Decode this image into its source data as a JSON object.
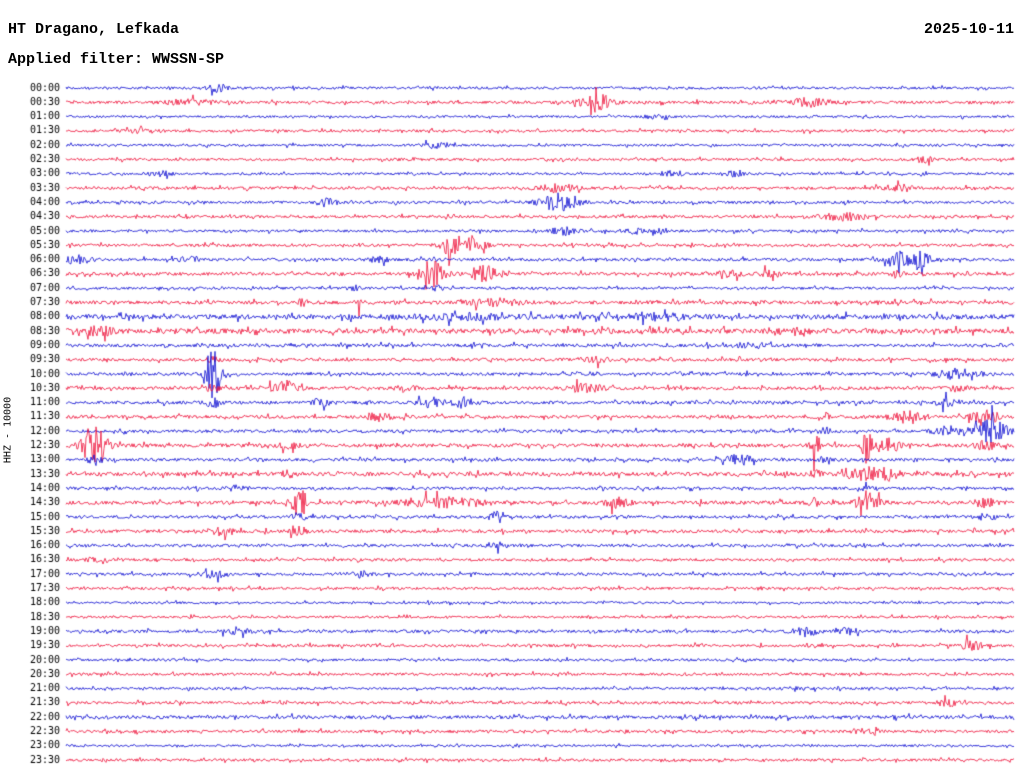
{
  "header": {
    "station": "HT Dragano, Lefkada",
    "date": "2025-10-11",
    "filter_label": "Applied filter: WWSSN-SP"
  },
  "axis": {
    "channel_label": "HHZ - 10000"
  },
  "colors": {
    "blue": "#0b0bd0",
    "red": "#ee1038",
    "text": "#000000",
    "background": "#ffffff"
  },
  "chart_data": {
    "type": "line",
    "title": "HT Dragano, Lefkada",
    "subtitle": "Applied filter: WWSSN-SP",
    "date": "2025-10-11",
    "ylabel": "HHZ - 10000",
    "x_range_per_row_minutes": 30,
    "rows": [
      {
        "label": "00:00",
        "color": "blue",
        "noise": 1.2,
        "events": [
          [
            0.16,
            3.5,
            8
          ]
        ]
      },
      {
        "label": "00:30",
        "color": "red",
        "noise": 1.4,
        "events": [
          [
            0.13,
            2.5,
            18
          ],
          [
            0.56,
            8,
            11
          ],
          [
            0.785,
            5,
            13
          ]
        ]
      },
      {
        "label": "01:00",
        "color": "blue",
        "noise": 1.1,
        "events": [
          [
            0.62,
            1.5,
            10
          ]
        ]
      },
      {
        "label": "01:30",
        "color": "red",
        "noise": 1.3,
        "events": [
          [
            0.08,
            1.8,
            12
          ]
        ]
      },
      {
        "label": "02:00",
        "color": "blue",
        "noise": 1.2,
        "events": [
          [
            0.39,
            2.5,
            9
          ]
        ]
      },
      {
        "label": "02:30",
        "color": "red",
        "noise": 1.3,
        "events": [
          [
            0.905,
            3.5,
            5
          ]
        ]
      },
      {
        "label": "03:00",
        "color": "blue",
        "noise": 1.2,
        "events": [
          [
            0.1,
            2.5,
            8
          ],
          [
            0.64,
            2.5,
            10
          ],
          [
            0.705,
            2.5,
            6
          ]
        ]
      },
      {
        "label": "03:30",
        "color": "red",
        "noise": 1.4,
        "events": [
          [
            0.52,
            3.5,
            14
          ],
          [
            0.875,
            2.5,
            10
          ]
        ]
      },
      {
        "label": "04:00",
        "color": "blue",
        "noise": 1.3,
        "events": [
          [
            0.275,
            4,
            7
          ],
          [
            0.52,
            9,
            13
          ]
        ]
      },
      {
        "label": "04:30",
        "color": "red",
        "noise": 1.4,
        "events": [
          [
            0.82,
            3.5,
            15
          ]
        ]
      },
      {
        "label": "05:00",
        "color": "blue",
        "noise": 1.3,
        "events": [
          [
            0.525,
            3.5,
            9
          ],
          [
            0.6,
            2.5,
            7
          ],
          [
            0.625,
            2.5,
            5
          ]
        ]
      },
      {
        "label": "05:30",
        "color": "red",
        "noise": 1.4,
        "events": [
          [
            0.405,
            13,
            5
          ],
          [
            0.43,
            5,
            9
          ]
        ]
      },
      {
        "label": "06:00",
        "color": "blue",
        "noise": 1.5,
        "events": [
          [
            0.012,
            4,
            9
          ],
          [
            0.13,
            3,
            7
          ],
          [
            0.33,
            3,
            7
          ],
          [
            0.89,
            11,
            13
          ]
        ]
      },
      {
        "label": "06:30",
        "color": "red",
        "noise": 1.6,
        "events": [
          [
            0.388,
            12,
            9
          ],
          [
            0.443,
            10,
            9
          ],
          [
            0.7,
            4,
            7
          ],
          [
            0.745,
            4,
            7
          ],
          [
            0.875,
            3,
            5
          ]
        ]
      },
      {
        "label": "07:00",
        "color": "blue",
        "noise": 1.3,
        "events": [
          [
            0.305,
            2.5,
            5
          ],
          [
            0.39,
            2.5,
            7
          ]
        ]
      },
      {
        "label": "07:30",
        "color": "red",
        "noise": 1.8,
        "events": [
          [
            0.25,
            5,
            3
          ],
          [
            0.31,
            5,
            3
          ],
          [
            0.45,
            3.5,
            18
          ]
        ]
      },
      {
        "label": "08:00",
        "color": "blue",
        "noise": 2.4,
        "events": [
          [
            0.42,
            2.5,
            28
          ],
          [
            0.63,
            2.5,
            20
          ]
        ]
      },
      {
        "label": "08:30",
        "color": "red",
        "noise": 2.4,
        "events": [
          [
            0.035,
            4,
            9
          ],
          [
            0.77,
            2.5,
            10
          ]
        ]
      },
      {
        "label": "09:00",
        "color": "blue",
        "noise": 1.6,
        "events": [
          [
            0.72,
            2.5,
            10
          ]
        ]
      },
      {
        "label": "09:30",
        "color": "red",
        "noise": 1.5,
        "events": [
          [
            0.155,
            3,
            4
          ],
          [
            0.56,
            2.5,
            8
          ]
        ]
      },
      {
        "label": "10:00",
        "color": "blue",
        "noise": 1.5,
        "events": [
          [
            0.155,
            26,
            6
          ],
          [
            0.94,
            5,
            16
          ]
        ]
      },
      {
        "label": "10:30",
        "color": "red",
        "noise": 1.6,
        "events": [
          [
            0.155,
            4,
            4
          ],
          [
            0.23,
            7,
            9
          ],
          [
            0.36,
            3.5,
            7
          ],
          [
            0.55,
            4.5,
            11
          ],
          [
            0.94,
            2.5,
            9
          ]
        ]
      },
      {
        "label": "11:00",
        "color": "blue",
        "noise": 1.6,
        "events": [
          [
            0.155,
            5,
            5
          ],
          [
            0.27,
            3.5,
            7
          ],
          [
            0.385,
            5,
            9
          ],
          [
            0.42,
            5,
            7
          ],
          [
            0.93,
            3.5,
            9
          ]
        ]
      },
      {
        "label": "11:30",
        "color": "red",
        "noise": 1.6,
        "events": [
          [
            0.33,
            3.5,
            9
          ],
          [
            0.8,
            4,
            5
          ],
          [
            0.89,
            6,
            11
          ],
          [
            0.97,
            7,
            9
          ]
        ]
      },
      {
        "label": "12:00",
        "color": "blue",
        "noise": 1.5,
        "events": [
          [
            0.8,
            4,
            4
          ],
          [
            0.93,
            5,
            9
          ],
          [
            0.975,
            12,
            12
          ]
        ]
      },
      {
        "label": "12:30",
        "color": "red",
        "noise": 1.8,
        "events": [
          [
            0.03,
            22,
            8
          ],
          [
            0.235,
            3,
            6
          ],
          [
            0.79,
            12,
            3
          ],
          [
            0.845,
            20,
            3
          ],
          [
            0.87,
            7,
            7
          ],
          [
            0.97,
            4,
            8
          ]
        ]
      },
      {
        "label": "13:00",
        "color": "blue",
        "noise": 1.5,
        "events": [
          [
            0.03,
            5,
            5
          ],
          [
            0.71,
            5,
            9
          ],
          [
            0.8,
            3,
            4
          ]
        ]
      },
      {
        "label": "13:30",
        "color": "red",
        "noise": 1.9,
        "events": [
          [
            0.235,
            3,
            6
          ],
          [
            0.79,
            4,
            4
          ],
          [
            0.845,
            6,
            13
          ],
          [
            0.87,
            5,
            6
          ]
        ]
      },
      {
        "label": "14:00",
        "color": "blue",
        "noise": 1.4,
        "events": [
          [
            0.18,
            2.5,
            7
          ],
          [
            0.845,
            3,
            4
          ]
        ]
      },
      {
        "label": "14:30",
        "color": "red",
        "noise": 1.8,
        "events": [
          [
            0.245,
            18,
            6
          ],
          [
            0.4,
            5,
            26
          ],
          [
            0.58,
            4.5,
            9
          ],
          [
            0.79,
            4,
            4
          ],
          [
            0.845,
            7,
            9
          ],
          [
            0.97,
            4.5,
            7
          ]
        ]
      },
      {
        "label": "15:00",
        "color": "blue",
        "noise": 1.5,
        "events": [
          [
            0.245,
            3.5,
            5
          ],
          [
            0.455,
            5,
            7
          ],
          [
            0.97,
            3,
            6
          ]
        ]
      },
      {
        "label": "15:30",
        "color": "red",
        "noise": 1.6,
        "events": [
          [
            0.165,
            4.5,
            9
          ],
          [
            0.245,
            4.5,
            5
          ]
        ]
      },
      {
        "label": "16:00",
        "color": "blue",
        "noise": 1.4,
        "events": [
          [
            0.46,
            2.5,
            9
          ]
        ]
      },
      {
        "label": "16:30",
        "color": "red",
        "noise": 1.4,
        "events": [
          [
            0.03,
            2.5,
            5
          ]
        ]
      },
      {
        "label": "17:00",
        "color": "blue",
        "noise": 1.4,
        "events": [
          [
            0.155,
            3.5,
            9
          ],
          [
            0.31,
            3.5,
            7
          ]
        ]
      },
      {
        "label": "17:30",
        "color": "red",
        "noise": 1.3,
        "events": []
      },
      {
        "label": "18:00",
        "color": "blue",
        "noise": 1.1,
        "events": []
      },
      {
        "label": "18:30",
        "color": "red",
        "noise": 1.2,
        "events": []
      },
      {
        "label": "19:00",
        "color": "blue",
        "noise": 1.4,
        "events": [
          [
            0.18,
            3.5,
            9
          ],
          [
            0.78,
            4,
            9
          ],
          [
            0.825,
            3.5,
            7
          ]
        ]
      },
      {
        "label": "19:30",
        "color": "red",
        "noise": 1.4,
        "events": [
          [
            0.955,
            5,
            7
          ]
        ]
      },
      {
        "label": "20:00",
        "color": "blue",
        "noise": 1.2,
        "events": []
      },
      {
        "label": "20:30",
        "color": "red",
        "noise": 1.3,
        "events": []
      },
      {
        "label": "21:00",
        "color": "blue",
        "noise": 1.2,
        "events": [
          [
            0.77,
            2,
            9
          ]
        ]
      },
      {
        "label": "21:30",
        "color": "red",
        "noise": 1.4,
        "events": [
          [
            0.93,
            3.5,
            7
          ]
        ]
      },
      {
        "label": "22:00",
        "color": "blue",
        "noise": 1.7,
        "events": []
      },
      {
        "label": "22:30",
        "color": "red",
        "noise": 1.4,
        "events": [
          [
            0.84,
            2.5,
            9
          ]
        ]
      },
      {
        "label": "23:00",
        "color": "blue",
        "noise": 1.1,
        "events": []
      },
      {
        "label": "23:30",
        "color": "red",
        "noise": 1.3,
        "events": []
      }
    ]
  }
}
